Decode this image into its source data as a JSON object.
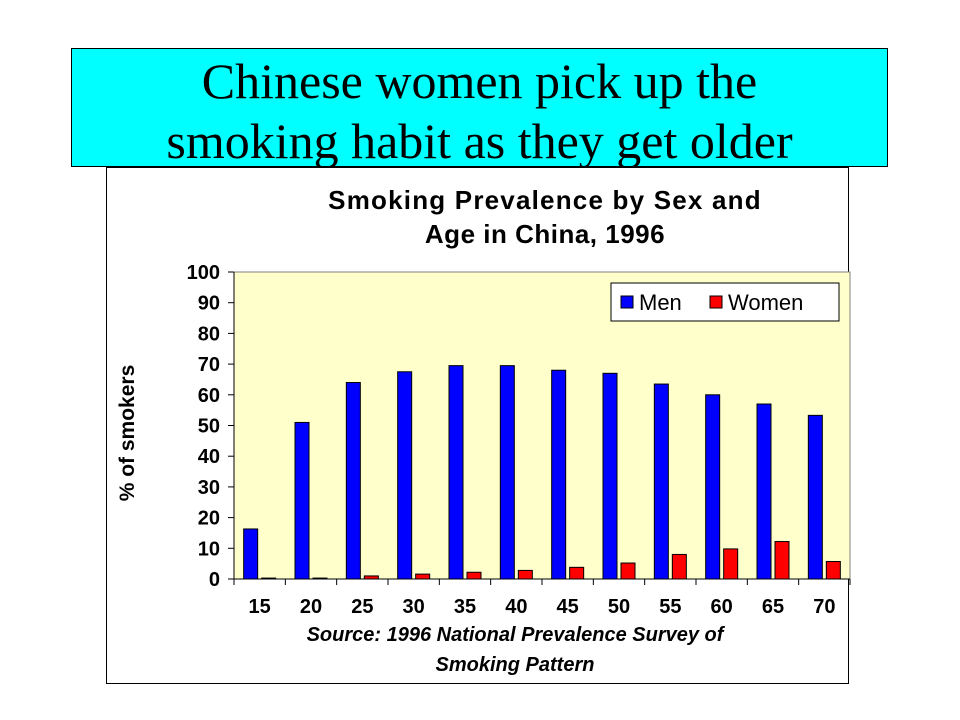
{
  "slide": {
    "title_line1": "Chinese women pick up the",
    "title_line2": "smoking habit as they get older"
  },
  "chart_data": {
    "type": "bar",
    "title_line1": "Smoking Prevalence by Sex and",
    "title_line2": "Age in China, 1996",
    "xlabel": "",
    "ylabel": "% of smokers",
    "ylim": [
      0,
      100
    ],
    "yticks": [
      0,
      10,
      20,
      30,
      40,
      50,
      60,
      70,
      80,
      90,
      100
    ],
    "categories": [
      "15",
      "20",
      "25",
      "30",
      "35",
      "40",
      "45",
      "50",
      "55",
      "60",
      "65",
      "70"
    ],
    "series": [
      {
        "name": "Men",
        "color": "#0000ff",
        "values": [
          16.3,
          51,
          64,
          67.5,
          69.5,
          69.5,
          68,
          67,
          63.5,
          60,
          57,
          53.3
        ]
      },
      {
        "name": "Women",
        "color": "#ff0000",
        "values": [
          0.3,
          0.3,
          1,
          1.6,
          2.2,
          2.8,
          3.8,
          5.2,
          8,
          9.8,
          12.2,
          5.7
        ]
      }
    ],
    "grid": false,
    "legend": "top-right",
    "plot_background": "#ffffcc",
    "source_line1": "Source: 1996 National Prevalence Survey of",
    "source_line2": "Smoking Pattern"
  }
}
